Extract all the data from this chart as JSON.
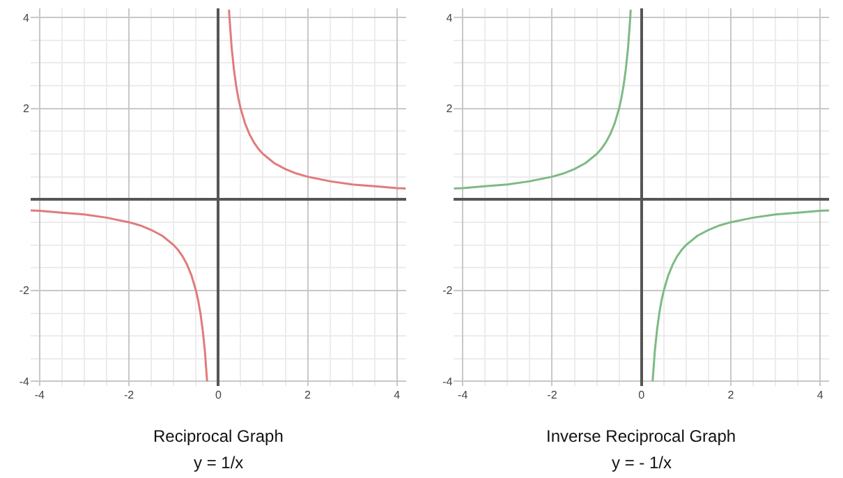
{
  "chart_data": [
    {
      "type": "line",
      "title": "Reciprocal Graph",
      "subtitle": "y = 1/x",
      "x": [
        -4.2,
        -4,
        -3.5,
        -3,
        -2.5,
        -2,
        -1.75,
        -1.5,
        -1.25,
        -1,
        -0.9,
        -0.8,
        -0.7,
        -0.6,
        -0.5,
        -0.45,
        -0.4,
        -0.35,
        -0.3,
        -0.25,
        0,
        0.24,
        0.25,
        0.3,
        0.35,
        0.4,
        0.45,
        0.5,
        0.6,
        0.7,
        0.8,
        0.9,
        1,
        1.25,
        1.5,
        1.75,
        2,
        2.5,
        3,
        3.5,
        4,
        4.2
      ],
      "series": [
        {
          "color": "#e07b7b",
          "values": [
            -0.24,
            -0.25,
            -0.29,
            -0.33,
            -0.4,
            -0.5,
            -0.57,
            -0.67,
            -0.8,
            -1,
            -1.11,
            -1.25,
            -1.43,
            -1.67,
            -2,
            -2.22,
            -2.5,
            -2.86,
            -3.33,
            -4,
            null,
            4.17,
            4,
            3.33,
            2.86,
            2.5,
            2.22,
            2,
            1.67,
            1.43,
            1.25,
            1.11,
            1,
            0.8,
            0.67,
            0.57,
            0.5,
            0.4,
            0.33,
            0.29,
            0.25,
            0.24
          ]
        }
      ],
      "xlim": [
        -4.2,
        4.2
      ],
      "ylim": [
        -4.1,
        4.2
      ],
      "xticks": [
        -4,
        -2,
        0,
        2,
        4
      ],
      "yticks": [
        -4,
        -2,
        2,
        4
      ],
      "grid": true
    },
    {
      "type": "line",
      "title": "Inverse Reciprocal Graph",
      "subtitle": "y = - 1/x",
      "x": [
        -4.2,
        -4,
        -3.5,
        -3,
        -2.5,
        -2,
        -1.75,
        -1.5,
        -1.25,
        -1,
        -0.9,
        -0.8,
        -0.7,
        -0.6,
        -0.5,
        -0.45,
        -0.4,
        -0.35,
        -0.3,
        -0.25,
        -0.24,
        0,
        0.25,
        0.3,
        0.35,
        0.4,
        0.45,
        0.5,
        0.6,
        0.7,
        0.8,
        0.9,
        1,
        1.25,
        1.5,
        1.75,
        2,
        2.5,
        3,
        3.5,
        4,
        4.2
      ],
      "series": [
        {
          "color": "#7dba84",
          "values": [
            0.24,
            0.25,
            0.29,
            0.33,
            0.4,
            0.5,
            0.57,
            0.67,
            0.8,
            1,
            1.11,
            1.25,
            1.43,
            1.67,
            2,
            2.22,
            2.5,
            2.86,
            3.33,
            4,
            4.17,
            null,
            -4,
            -3.33,
            -2.86,
            -2.5,
            -2.22,
            -2,
            -1.67,
            -1.43,
            -1.25,
            -1.11,
            -1,
            -0.8,
            -0.67,
            -0.57,
            -0.5,
            -0.4,
            -0.33,
            -0.29,
            -0.25,
            -0.24
          ]
        }
      ],
      "xlim": [
        -4.2,
        4.2
      ],
      "ylim": [
        -4.1,
        4.2
      ],
      "xticks": [
        -4,
        -2,
        0,
        2,
        4
      ],
      "yticks": [
        -4,
        -2,
        2,
        4
      ],
      "grid": true
    }
  ]
}
